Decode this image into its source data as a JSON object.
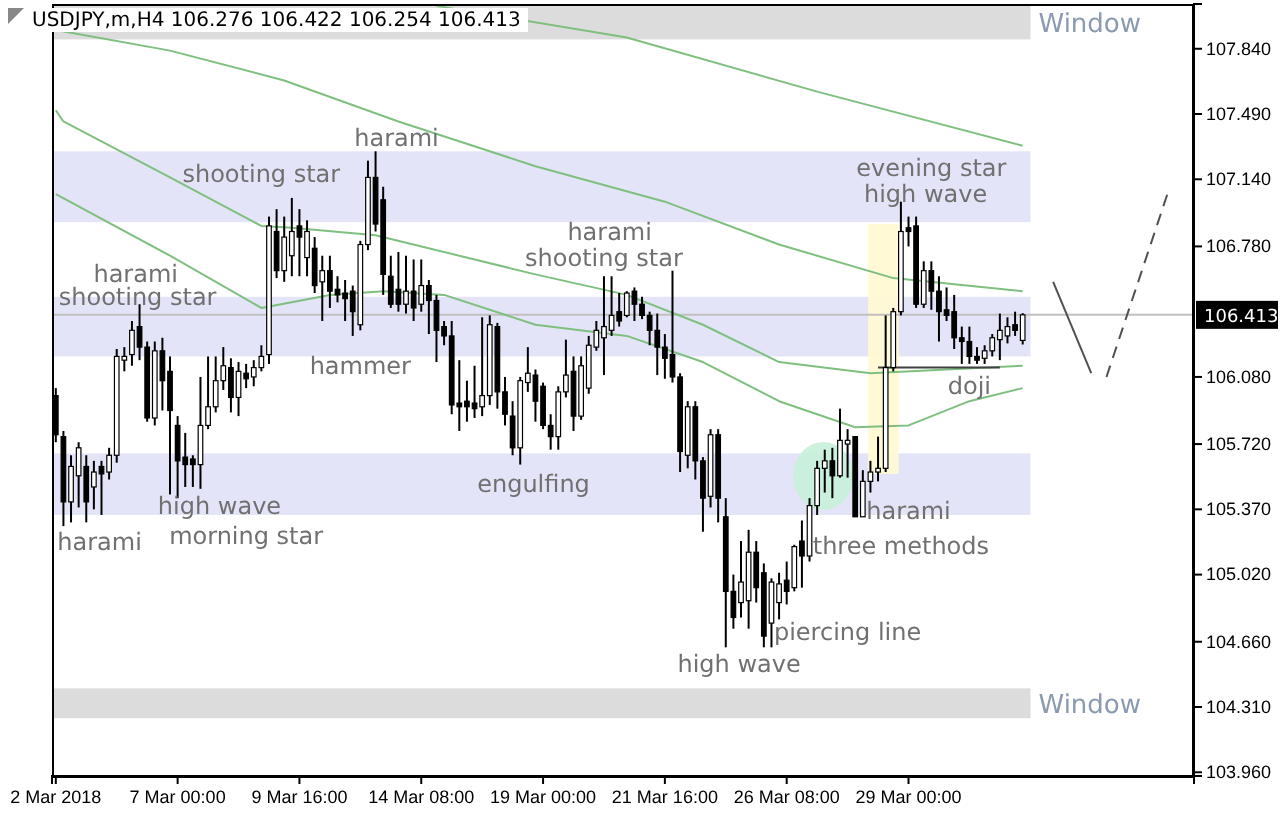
{
  "chart_data": {
    "type": "candlestick",
    "title": "USDJPY,m,H4  106.276 106.422 106.254 106.413",
    "categories": [
      "2 Mar 2018",
      null,
      null,
      null,
      null,
      null,
      null,
      null,
      null,
      null,
      null,
      null,
      null,
      null,
      null,
      null,
      "7 Mar 00:00",
      null,
      null,
      null,
      null,
      null,
      null,
      null,
      null,
      null,
      null,
      null,
      null,
      null,
      null,
      null,
      "9 Mar 16:00",
      null,
      null,
      null,
      null,
      null,
      null,
      null,
      null,
      null,
      null,
      null,
      null,
      null,
      null,
      null,
      "14 Mar 08:00",
      null,
      null,
      null,
      null,
      null,
      null,
      null,
      null,
      null,
      null,
      null,
      null,
      null,
      null,
      null,
      "19 Mar 00:00",
      null,
      null,
      null,
      null,
      null,
      null,
      null,
      null,
      null,
      null,
      null,
      null,
      null,
      null,
      null,
      "21 Mar 16:00",
      null,
      null,
      null,
      null,
      null,
      null,
      null,
      null,
      null,
      null,
      null,
      null,
      null,
      null,
      null,
      "26 Mar 08:00",
      null,
      null,
      null,
      null,
      null,
      null,
      null,
      null,
      null,
      null,
      null,
      null,
      null,
      null,
      null,
      "29 Mar 00:00",
      null,
      null,
      null,
      null,
      null,
      null,
      null,
      null,
      null,
      null,
      null,
      null,
      null,
      null,
      null,
      null,
      null,
      null,
      null,
      null,
      null,
      null,
      null,
      null,
      null,
      null,
      null,
      null,
      null,
      null,
      null,
      null,
      null,
      null,
      null,
      null,
      null
    ],
    "ohlc": [
      [
        105.98,
        106.02,
        105.73,
        105.77
      ],
      [
        105.76,
        105.79,
        105.28,
        105.41
      ],
      [
        105.41,
        105.66,
        105.3,
        105.6
      ],
      [
        105.55,
        105.73,
        105.38,
        105.7
      ],
      [
        105.6,
        105.66,
        105.3,
        105.41
      ],
      [
        105.49,
        105.63,
        105.37,
        105.57
      ],
      [
        105.6,
        105.63,
        105.34,
        105.56
      ],
      [
        105.57,
        105.7,
        105.53,
        105.66
      ],
      [
        105.66,
        106.23,
        105.62,
        106.19
      ],
      [
        106.17,
        106.24,
        106.11,
        106.19
      ],
      [
        106.2,
        106.38,
        106.14,
        106.33
      ],
      [
        106.35,
        106.47,
        106.17,
        106.24
      ],
      [
        106.24,
        106.27,
        105.84,
        105.86
      ],
      [
        105.86,
        106.27,
        105.82,
        106.22
      ],
      [
        106.22,
        106.29,
        105.9,
        106.06
      ],
      [
        106.11,
        106.19,
        105.45,
        105.9
      ],
      [
        105.82,
        105.87,
        105.43,
        105.63
      ],
      [
        105.65,
        105.78,
        105.49,
        105.61
      ],
      [
        105.64,
        105.66,
        105.49,
        105.61
      ],
      [
        105.61,
        106.08,
        105.48,
        105.82
      ],
      [
        105.82,
        106.19,
        105.8,
        105.92
      ],
      [
        105.92,
        106.19,
        105.89,
        106.06
      ],
      [
        106.06,
        106.24,
        106.01,
        106.14
      ],
      [
        106.13,
        106.18,
        105.89,
        105.97
      ],
      [
        105.97,
        106.16,
        105.87,
        106.11
      ],
      [
        106.1,
        106.15,
        106.02,
        106.07
      ],
      [
        106.08,
        106.17,
        106.03,
        106.13
      ],
      [
        106.13,
        106.25,
        106.11,
        106.19
      ],
      [
        106.2,
        106.94,
        106.15,
        106.89
      ],
      [
        106.86,
        106.98,
        106.61,
        106.65
      ],
      [
        106.65,
        106.94,
        106.59,
        106.83
      ],
      [
        106.73,
        107.04,
        106.62,
        106.86
      ],
      [
        106.89,
        106.98,
        106.62,
        106.83
      ],
      [
        106.72,
        106.92,
        106.62,
        106.86
      ],
      [
        106.77,
        106.83,
        106.53,
        106.57
      ],
      [
        106.59,
        106.73,
        106.38,
        106.65
      ],
      [
        106.65,
        106.73,
        106.45,
        106.54
      ],
      [
        106.55,
        106.62,
        106.48,
        106.52
      ],
      [
        106.53,
        106.6,
        106.38,
        106.5
      ],
      [
        106.54,
        106.57,
        106.3,
        106.43
      ],
      [
        106.36,
        106.81,
        106.33,
        106.79
      ],
      [
        106.79,
        107.24,
        106.76,
        107.15
      ],
      [
        107.15,
        107.29,
        106.86,
        106.9
      ],
      [
        107.03,
        107.1,
        106.52,
        106.63
      ],
      [
        106.62,
        106.73,
        106.45,
        106.47
      ],
      [
        106.55,
        106.75,
        106.43,
        106.47
      ],
      [
        106.47,
        106.73,
        106.42,
        106.54
      ],
      [
        106.54,
        106.71,
        106.38,
        106.45
      ],
      [
        106.47,
        106.71,
        106.43,
        106.57
      ],
      [
        106.57,
        106.6,
        106.31,
        106.49
      ],
      [
        106.49,
        106.52,
        106.16,
        106.33
      ],
      [
        106.35,
        106.38,
        106.25,
        106.3
      ],
      [
        106.3,
        106.38,
        105.88,
        105.93
      ],
      [
        105.94,
        106.17,
        105.79,
        105.92
      ],
      [
        105.95,
        106.06,
        105.84,
        105.92
      ],
      [
        105.94,
        106.14,
        105.86,
        105.91
      ],
      [
        105.92,
        106.4,
        105.87,
        105.98
      ],
      [
        105.98,
        106.41,
        105.93,
        106.36
      ],
      [
        106.35,
        106.37,
        105.91,
        106.0
      ],
      [
        106.0,
        106.08,
        105.82,
        105.88
      ],
      [
        105.87,
        105.95,
        105.66,
        105.7
      ],
      [
        105.7,
        106.08,
        105.61,
        106.06
      ],
      [
        106.05,
        106.24,
        106.0,
        106.1
      ],
      [
        106.09,
        106.12,
        105.84,
        105.95
      ],
      [
        106.03,
        106.05,
        105.8,
        105.82
      ],
      [
        105.82,
        105.88,
        105.69,
        105.76
      ],
      [
        105.76,
        106.03,
        105.69,
        106.0
      ],
      [
        106.0,
        106.28,
        105.97,
        106.09
      ],
      [
        106.11,
        106.19,
        105.79,
        105.87
      ],
      [
        105.87,
        106.19,
        105.85,
        106.14
      ],
      [
        106.02,
        106.3,
        105.99,
        106.25
      ],
      [
        106.24,
        106.38,
        106.22,
        106.33
      ],
      [
        106.29,
        106.62,
        106.09,
        106.35
      ],
      [
        106.33,
        106.62,
        106.3,
        106.41
      ],
      [
        106.43,
        106.53,
        106.35,
        106.38
      ],
      [
        106.41,
        106.54,
        106.4,
        106.53
      ],
      [
        106.54,
        106.56,
        106.38,
        106.47
      ],
      [
        106.47,
        106.51,
        106.39,
        106.41
      ],
      [
        106.41,
        106.43,
        106.25,
        106.33
      ],
      [
        106.33,
        106.42,
        106.09,
        106.24
      ],
      [
        106.24,
        106.31,
        106.07,
        106.18
      ],
      [
        106.2,
        106.65,
        106.05,
        106.08
      ],
      [
        106.08,
        106.1,
        105.57,
        105.68
      ],
      [
        105.66,
        105.95,
        105.59,
        105.92
      ],
      [
        105.92,
        105.95,
        105.53,
        105.63
      ],
      [
        105.63,
        105.65,
        105.25,
        105.43
      ],
      [
        105.44,
        105.8,
        105.38,
        105.77
      ],
      [
        105.77,
        105.8,
        105.3,
        105.43
      ],
      [
        105.33,
        105.43,
        104.63,
        104.93
      ],
      [
        104.93,
        105.02,
        104.73,
        104.79
      ],
      [
        104.87,
        105.2,
        104.79,
        104.98
      ],
      [
        104.88,
        105.26,
        104.73,
        105.14
      ],
      [
        105.14,
        105.2,
        104.87,
        104.95
      ],
      [
        105.03,
        105.08,
        104.63,
        104.69
      ],
      [
        104.76,
        105.0,
        104.63,
        104.98
      ],
      [
        104.87,
        105.03,
        104.78,
        104.97
      ],
      [
        104.99,
        105.09,
        104.86,
        104.93
      ],
      [
        104.95,
        105.18,
        104.93,
        105.17
      ],
      [
        105.2,
        105.31,
        104.95,
        105.12
      ],
      [
        105.12,
        105.43,
        105.09,
        105.39
      ],
      [
        105.39,
        105.63,
        105.34,
        105.59
      ],
      [
        105.59,
        105.69,
        105.46,
        105.63
      ],
      [
        105.63,
        105.7,
        105.43,
        105.55
      ],
      [
        105.55,
        105.91,
        105.54,
        105.74
      ],
      [
        105.72,
        105.8,
        105.54,
        105.74
      ],
      [
        105.76,
        105.76,
        105.33,
        105.33
      ],
      [
        105.33,
        105.58,
        105.33,
        105.52
      ],
      [
        105.52,
        105.63,
        105.46,
        105.57
      ],
      [
        105.57,
        105.76,
        105.52,
        105.59
      ],
      [
        105.59,
        106.41,
        105.57,
        106.13
      ],
      [
        106.13,
        106.45,
        106.11,
        106.43
      ],
      [
        106.43,
        107.02,
        106.41,
        106.86
      ],
      [
        106.88,
        106.94,
        106.78,
        106.86
      ],
      [
        106.89,
        106.94,
        106.45,
        106.47
      ],
      [
        106.47,
        106.7,
        106.45,
        106.65
      ],
      [
        106.65,
        106.7,
        106.44,
        106.54
      ],
      [
        106.54,
        106.62,
        106.27,
        106.43
      ],
      [
        106.44,
        106.56,
        106.38,
        106.41
      ],
      [
        106.43,
        106.52,
        106.23,
        106.29
      ],
      [
        106.29,
        106.35,
        106.15,
        106.27
      ],
      [
        106.27,
        106.35,
        106.15,
        106.19
      ],
      [
        106.19,
        106.24,
        106.15,
        106.17
      ],
      [
        106.18,
        106.25,
        106.15,
        106.22
      ],
      [
        106.22,
        106.31,
        106.19,
        106.29
      ],
      [
        106.28,
        106.42,
        106.17,
        106.33
      ],
      [
        106.3,
        106.4,
        106.26,
        106.35
      ],
      [
        106.36,
        106.43,
        106.3,
        106.33
      ],
      [
        106.276,
        106.422,
        106.254,
        106.413
      ],
      null,
      null,
      null,
      null,
      null,
      null,
      null,
      null,
      null,
      null,
      null,
      null,
      null,
      null,
      null,
      null,
      null,
      null,
      null,
      null,
      null,
      null
    ],
    "ylim": [
      103.94,
      108.08
    ],
    "yticks": [
      {
        "value": 103.96,
        "label": "103.960"
      },
      {
        "value": 104.31,
        "label": "104.310"
      },
      {
        "value": 104.66,
        "label": "104.660"
      },
      {
        "value": 105.02,
        "label": "105.020"
      },
      {
        "value": 105.37,
        "label": "105.370"
      },
      {
        "value": 105.72,
        "label": "105.720"
      },
      {
        "value": 106.08,
        "label": "106.080"
      },
      {
        "value": 106.78,
        "label": "106.780"
      },
      {
        "value": 107.14,
        "label": "107.140"
      },
      {
        "value": 107.49,
        "label": "107.490"
      },
      {
        "value": 107.84,
        "label": "107.840"
      }
    ],
    "series": [
      {
        "type": "line",
        "color": "#7fbf7f",
        "values": [
          null,
          null,
          null,
          null,
          null,
          null,
          null,
          null,
          null,
          null,
          null,
          null,
          null,
          null,
          null,
          null,
          null,
          null,
          null,
          null,
          null,
          null,
          null,
          null,
          null,
          null,
          null,
          null,
          null,
          null,
          null,
          null,
          null,
          null,
          null,
          null,
          null,
          null,
          null,
          null,
          null,
          null,
          null,
          null,
          null,
          null,
          null,
          null,
          null,
          null,
          108.07,
          null,
          null,
          null,
          null,
          null,
          null,
          null,
          null,
          null,
          null,
          null,
          null,
          null,
          null,
          null,
          null,
          null,
          null,
          null,
          null,
          null,
          null,
          null,
          null,
          107.9,
          null,
          null,
          null,
          null,
          null,
          null,
          null,
          null,
          null,
          null,
          null,
          null,
          null,
          null,
          null,
          null,
          null,
          null,
          null,
          null,
          null,
          null,
          null,
          null,
          107.61,
          null,
          null,
          null,
          null,
          null,
          null,
          null,
          null,
          null,
          null,
          null,
          null,
          null,
          null,
          null,
          null,
          null,
          null,
          null,
          null,
          null,
          null,
          null,
          null,
          null,
          null,
          107.32,
          null,
          null,
          null,
          null,
          null,
          null,
          null,
          null,
          null,
          null,
          null,
          null,
          null,
          null,
          null,
          null,
          null,
          null,
          null,
          null,
          null,
          null
        ]
      },
      {
        "type": "line",
        "color": "#7fbf7f",
        "values": [
          107.94,
          null,
          null,
          null,
          null,
          null,
          null,
          null,
          null,
          null,
          null,
          null,
          null,
          null,
          null,
          107.83,
          null,
          null,
          null,
          null,
          null,
          null,
          null,
          null,
          null,
          null,
          null,
          null,
          null,
          null,
          107.67,
          null,
          null,
          null,
          null,
          null,
          null,
          null,
          null,
          null,
          null,
          null,
          null,
          null,
          null,
          107.45,
          null,
          null,
          null,
          null,
          null,
          null,
          null,
          null,
          null,
          null,
          null,
          null,
          null,
          null,
          null,
          null,
          null,
          107.21,
          null,
          null,
          null,
          null,
          null,
          null,
          null,
          null,
          null,
          null,
          null,
          null,
          null,
          null,
          null,
          null,
          107.02,
          null,
          null,
          null,
          null,
          null,
          null,
          null,
          null,
          null,
          null,
          null,
          null,
          null,
          null,
          106.79,
          null,
          null,
          null,
          null,
          null,
          null,
          null,
          null,
          null,
          null,
          null,
          null,
          null,
          null,
          106.61,
          null,
          null,
          null,
          null,
          null,
          null,
          null,
          null,
          null,
          null,
          null,
          null,
          null,
          null,
          null,
          null,
          106.54,
          null,
          null,
          null,
          null,
          null,
          null,
          null,
          null,
          null,
          null,
          null,
          null,
          null,
          null,
          null,
          null,
          null,
          null,
          null,
          null,
          null,
          null
        ]
      },
      {
        "type": "line",
        "color": "#7fbf7f",
        "values": [
          107.51,
          107.45,
          null,
          null,
          null,
          null,
          null,
          null,
          null,
          null,
          null,
          null,
          null,
          null,
          null,
          107.15,
          null,
          null,
          null,
          null,
          null,
          null,
          null,
          null,
          null,
          null,
          null,
          106.89,
          null,
          null,
          null,
          106.88,
          null,
          null,
          null,
          null,
          null,
          null,
          null,
          null,
          null,
          null,
          106.84,
          null,
          null,
          null,
          null,
          null,
          null,
          null,
          null,
          null,
          null,
          null,
          null,
          null,
          null,
          null,
          null,
          null,
          null,
          null,
          null,
          106.63,
          null,
          null,
          null,
          null,
          null,
          null,
          null,
          null,
          null,
          null,
          null,
          106.52,
          null,
          null,
          null,
          null,
          null,
          null,
          null,
          null,
          null,
          106.36,
          null,
          null,
          null,
          null,
          null,
          null,
          null,
          null,
          null,
          106.16,
          null,
          null,
          null,
          null,
          null,
          null,
          null,
          null,
          null,
          null,
          null,
          106.1,
          null,
          null,
          null,
          null,
          null,
          null,
          null,
          null,
          null,
          null,
          null,
          null,
          null,
          null,
          null,
          null,
          null,
          null,
          null,
          106.14,
          null,
          null,
          null,
          null,
          null,
          null,
          null,
          null,
          null,
          null,
          null,
          null,
          null,
          null,
          null,
          null,
          null,
          null,
          null,
          null,
          null,
          null
        ]
      },
      {
        "type": "line",
        "color": "#7fbf7f",
        "values": [
          107.06,
          null,
          null,
          null,
          null,
          null,
          null,
          null,
          null,
          null,
          null,
          null,
          null,
          null,
          null,
          106.73,
          null,
          null,
          null,
          null,
          null,
          null,
          null,
          null,
          null,
          null,
          null,
          106.45,
          null,
          null,
          null,
          null,
          null,
          null,
          null,
          null,
          106.52,
          null,
          null,
          null,
          null,
          null,
          null,
          106.54,
          null,
          null,
          null,
          null,
          null,
          null,
          null,
          106.52,
          null,
          null,
          null,
          null,
          null,
          null,
          null,
          null,
          null,
          null,
          null,
          106.36,
          null,
          null,
          null,
          null,
          null,
          null,
          null,
          null,
          null,
          null,
          null,
          106.3,
          null,
          null,
          null,
          null,
          null,
          null,
          null,
          null,
          null,
          106.16,
          null,
          null,
          null,
          null,
          null,
          null,
          null,
          null,
          null,
          105.95,
          null,
          null,
          null,
          null,
          null,
          null,
          null,
          null,
          null,
          105.81,
          null,
          null,
          null,
          null,
          null,
          null,
          105.82,
          null,
          null,
          null,
          null,
          null,
          null,
          null,
          105.95,
          null,
          null,
          null,
          null,
          null,
          null,
          106.02,
          null,
          null,
          null,
          null,
          null,
          null,
          null,
          null,
          null,
          null,
          null,
          null,
          null,
          null,
          null,
          null,
          null,
          null,
          null,
          null,
          null,
          null
        ]
      },
      {
        "type": "line",
        "color": "#404040",
        "values": [
          null,
          null,
          null,
          null,
          null,
          null,
          null,
          null,
          null,
          null,
          null,
          null,
          null,
          null,
          null,
          null,
          null,
          null,
          null,
          null,
          null,
          null,
          null,
          null,
          null,
          null,
          null,
          null,
          null,
          null,
          null,
          null,
          null,
          null,
          null,
          null,
          null,
          null,
          null,
          null,
          null,
          null,
          null,
          null,
          null,
          null,
          null,
          null,
          null,
          null,
          null,
          null,
          null,
          null,
          null,
          null,
          null,
          null,
          null,
          null,
          null,
          null,
          null,
          null,
          null,
          null,
          null,
          null,
          null,
          null,
          null,
          null,
          null,
          null,
          null,
          null,
          null,
          null,
          null,
          null,
          null,
          null,
          null,
          null,
          null,
          null,
          null,
          null,
          null,
          null,
          null,
          null,
          null,
          null,
          null,
          null,
          null,
          null,
          null,
          null,
          null,
          null,
          null,
          null,
          null,
          null,
          null,
          null,
          106.13,
          null,
          null,
          null,
          null,
          null,
          null,
          null,
          null,
          null,
          null,
          null,
          null,
          null,
          null,
          null,
          106.13,
          null,
          null,
          null,
          null,
          null,
          null,
          null,
          null,
          null,
          null,
          null,
          null,
          null,
          null,
          null,
          null,
          null,
          null,
          null,
          null,
          null,
          null,
          null,
          null,
          null
        ]
      },
      {
        "type": "line",
        "color": "#505050",
        "values": [
          null,
          null,
          null,
          null,
          null,
          null,
          null,
          null,
          null,
          null,
          null,
          null,
          null,
          null,
          null,
          null,
          null,
          null,
          null,
          null,
          null,
          null,
          null,
          null,
          null,
          null,
          null,
          null,
          null,
          null,
          null,
          null,
          null,
          null,
          null,
          null,
          null,
          null,
          null,
          null,
          null,
          null,
          null,
          null,
          null,
          null,
          null,
          null,
          null,
          null,
          null,
          null,
          null,
          null,
          null,
          null,
          null,
          null,
          null,
          null,
          null,
          null,
          null,
          null,
          null,
          null,
          null,
          null,
          null,
          null,
          null,
          null,
          null,
          null,
          null,
          null,
          null,
          null,
          null,
          null,
          null,
          null,
          null,
          null,
          null,
          null,
          null,
          null,
          null,
          null,
          null,
          null,
          null,
          null,
          null,
          null,
          null,
          null,
          null,
          null,
          null,
          null,
          null,
          null,
          null,
          null,
          null,
          null,
          null,
          null,
          null,
          null,
          null,
          null,
          null,
          null,
          null,
          null,
          null,
          null,
          null,
          null,
          null,
          null,
          null,
          null,
          null,
          null,
          null,
          null,
          null,
          106.59,
          null,
          null,
          null,
          null,
          106.1,
          null,
          null,
          null,
          null,
          null,
          null,
          null,
          null,
          null,
          null,
          null,
          null,
          null
        ]
      },
      {
        "type": "line",
        "color": "#505050",
        "line_style": "dashed",
        "values": [
          null,
          null,
          null,
          null,
          null,
          null,
          null,
          null,
          null,
          null,
          null,
          null,
          null,
          null,
          null,
          null,
          null,
          null,
          null,
          null,
          null,
          null,
          null,
          null,
          null,
          null,
          null,
          null,
          null,
          null,
          null,
          null,
          null,
          null,
          null,
          null,
          null,
          null,
          null,
          null,
          null,
          null,
          null,
          null,
          null,
          null,
          null,
          null,
          null,
          null,
          null,
          null,
          null,
          null,
          null,
          null,
          null,
          null,
          null,
          null,
          null,
          null,
          null,
          null,
          null,
          null,
          null,
          null,
          null,
          null,
          null,
          null,
          null,
          null,
          null,
          null,
          null,
          null,
          null,
          null,
          null,
          null,
          null,
          null,
          null,
          null,
          null,
          null,
          null,
          null,
          null,
          null,
          null,
          null,
          null,
          null,
          null,
          null,
          null,
          null,
          null,
          null,
          null,
          null,
          null,
          null,
          null,
          null,
          null,
          null,
          null,
          null,
          null,
          null,
          null,
          null,
          null,
          null,
          null,
          null,
          null,
          null,
          null,
          null,
          null,
          null,
          null,
          null,
          null,
          null,
          null,
          null,
          null,
          null,
          null,
          null,
          null,
          null,
          106.08,
          null,
          null,
          null,
          null,
          null,
          null,
          null,
          107.06,
          null,
          null,
          null
        ]
      }
    ],
    "bands": [
      {
        "axis": "y",
        "from": 107.89,
        "to": 108.08,
        "label": "Window",
        "color": "#dcdcdc"
      },
      {
        "axis": "y",
        "from": 106.91,
        "to": 107.29,
        "color": "#e4e4f8"
      },
      {
        "axis": "y",
        "from": 106.19,
        "to": 106.51,
        "color": "#e4e4f8"
      },
      {
        "axis": "y",
        "from": 105.34,
        "to": 105.67,
        "color": "#e4e4f8"
      },
      {
        "axis": "y",
        "from": 104.25,
        "to": 104.41,
        "label": "Window",
        "color": "#dcdcdc"
      }
    ],
    "ref_lines": [
      {
        "axis": "y",
        "value": 106.413,
        "label": "106.413",
        "color": "#c0c0c0"
      }
    ],
    "annotations": [
      "harami",
      "harami",
      {
        "text": "shooting star",
        "y": 106.51
      },
      {
        "text": "high wave",
        "y": 105.39
      },
      "morning star",
      "shooting star",
      "harami",
      "hammer",
      "engulfing",
      "harami",
      "shooting star",
      "high wave",
      "piercing line",
      "three methods",
      {
        "text": "harami",
        "y": 105.36
      },
      "evening star",
      "high wave",
      "doji"
    ]
  }
}
